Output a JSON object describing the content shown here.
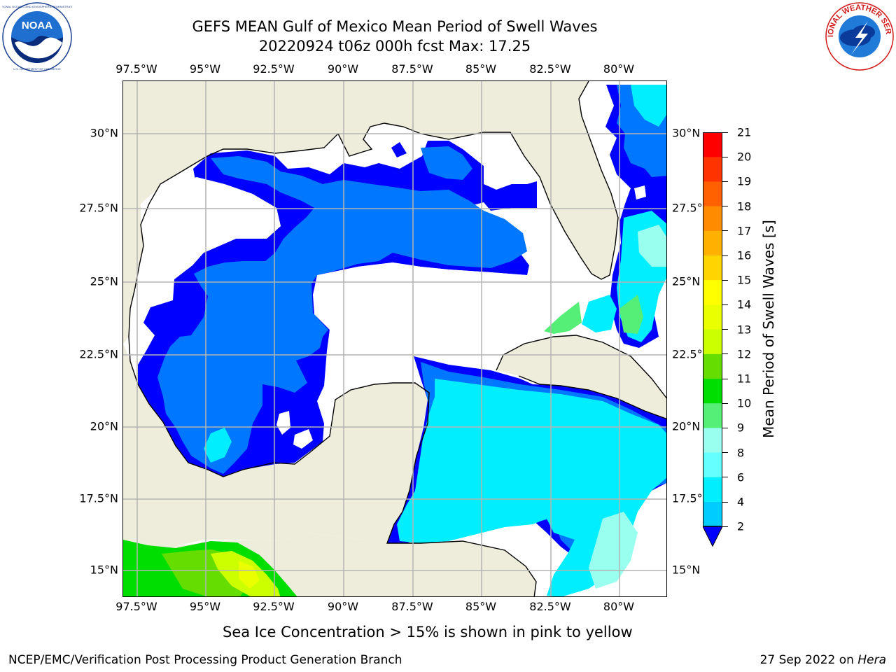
{
  "header": {
    "title": "GEFS MEAN Gulf of Mexico Mean Period of Swell Waves",
    "subtitle": "20220924 t06z 000h fcst   Max: 17.25"
  },
  "logos": {
    "left": "NOAA",
    "left_ring_text": "NATIONAL OCEANIC AND ATMOSPHERIC ADMINISTRATION · U.S. DEPARTMENT OF COMMERCE",
    "right_ring_text": "NATIONAL WEATHER SERVICE"
  },
  "map": {
    "lon_ticks_top": [
      "97.5°W",
      "95°W",
      "92.5°W",
      "90°W",
      "87.5°W",
      "85°W",
      "82.5°W",
      "80°W"
    ],
    "lon_ticks_bottom": [
      "97.5°W",
      "95°W",
      "92.5°W",
      "90°W",
      "87.5°W",
      "85°W",
      "82.5°W",
      "80°W"
    ],
    "lat_ticks_left": [
      "30°N",
      "27.5°N",
      "25°N",
      "22.5°N",
      "20°N",
      "17.5°N",
      "15°N"
    ],
    "lat_ticks_right": [
      "30°N",
      "27.5°N",
      "25°N",
      "22.5°N",
      "20°N",
      "17.5°N",
      "15°N"
    ],
    "lon_range": [
      -98,
      -78.2
    ],
    "lat_range": [
      14,
      31.8
    ],
    "grid": true,
    "colors": {
      "land": "#eeeddc",
      "coast": "#000000",
      "grid": "#b4b4b4",
      "no_data": "#ffffff"
    }
  },
  "colorbar": {
    "title": "Mean Period of Swell Waves [s]",
    "labels": [
      "21",
      "20",
      "19",
      "18",
      "17",
      "16",
      "15",
      "14",
      "13",
      "12",
      "11",
      "10",
      "9",
      "8",
      "6",
      "4",
      "2"
    ],
    "colors": [
      "#ff0000",
      "#ff3300",
      "#ff6000",
      "#ff8c00",
      "#ffb000",
      "#ffd400",
      "#ffff00",
      "#eaff00",
      "#ccff00",
      "#66dd00",
      "#00dd00",
      "#55ee77",
      "#99ffee",
      "#66ffff",
      "#00eeff",
      "#00ccff",
      "#0077ff",
      "#0000ff"
    ],
    "extend": "min"
  },
  "footer": {
    "note": "Sea Ice Concentration > 15% is shown in pink to yellow",
    "left": "NCEP/EMC/Verification Post Processing Product Generation Branch",
    "date": "27 Sep 2022 on ",
    "machine": "Hera"
  }
}
